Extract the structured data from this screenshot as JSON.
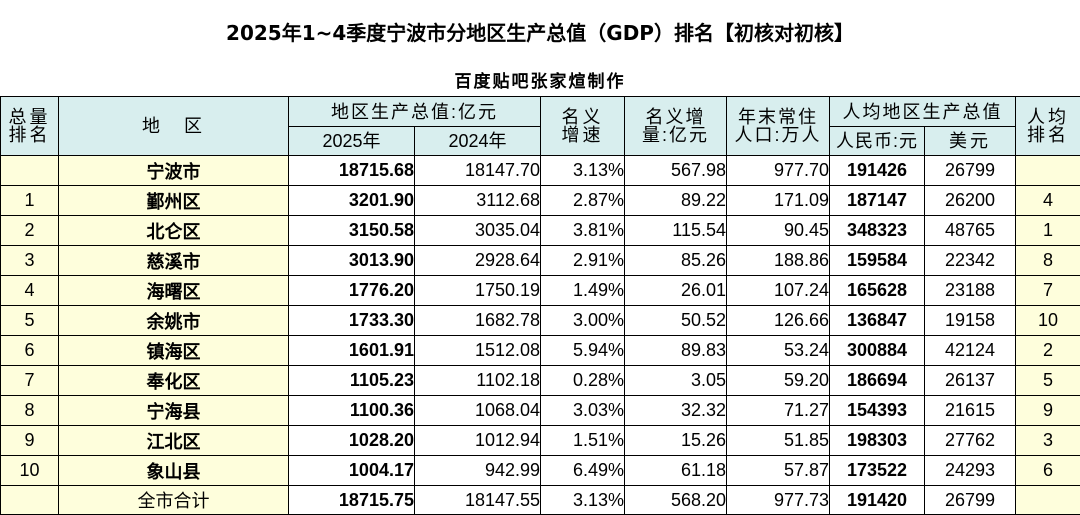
{
  "title": "2025年1~4季度宁波市分地区生产总值（GDP）排名【初核对初核】",
  "subtitle": "百度贴吧张家煊制作",
  "headers": {
    "rank_total": "总量\n排名",
    "region": "地　区",
    "gdp": "地区生产总值:亿元",
    "y2025": "2025年",
    "y2024": "2024年",
    "nominal_growth": "名义\n增速",
    "nominal_increase": "名义增\n量:亿元",
    "population": "年末常住\n人口:万人",
    "per_capita": "人均地区生产总值",
    "rmb": "人民币:元",
    "usd": "美元",
    "per_capita_rank": "人均\n排名"
  },
  "rows": [
    {
      "rank": "",
      "region": "宁波市",
      "gdp2025": "18715.68",
      "gdp2024": "18147.70",
      "growth": "3.13%",
      "increase": "567.98",
      "population": "977.70",
      "rmb": "191426",
      "usd": "26799",
      "pc_rank": ""
    },
    {
      "rank": "1",
      "region": "鄞州区",
      "gdp2025": "3201.90",
      "gdp2024": "3112.68",
      "growth": "2.87%",
      "increase": "89.22",
      "population": "171.09",
      "rmb": "187147",
      "usd": "26200",
      "pc_rank": "4"
    },
    {
      "rank": "2",
      "region": "北仑区",
      "gdp2025": "3150.58",
      "gdp2024": "3035.04",
      "growth": "3.81%",
      "increase": "115.54",
      "population": "90.45",
      "rmb": "348323",
      "usd": "48765",
      "pc_rank": "1"
    },
    {
      "rank": "3",
      "region": "慈溪市",
      "gdp2025": "3013.90",
      "gdp2024": "2928.64",
      "growth": "2.91%",
      "increase": "85.26",
      "population": "188.86",
      "rmb": "159584",
      "usd": "22342",
      "pc_rank": "8"
    },
    {
      "rank": "4",
      "region": "海曙区",
      "gdp2025": "1776.20",
      "gdp2024": "1750.19",
      "growth": "1.49%",
      "increase": "26.01",
      "population": "107.24",
      "rmb": "165628",
      "usd": "23188",
      "pc_rank": "7"
    },
    {
      "rank": "5",
      "region": "余姚市",
      "gdp2025": "1733.30",
      "gdp2024": "1682.78",
      "growth": "3.00%",
      "increase": "50.52",
      "population": "126.66",
      "rmb": "136847",
      "usd": "19158",
      "pc_rank": "10"
    },
    {
      "rank": "6",
      "region": "镇海区",
      "gdp2025": "1601.91",
      "gdp2024": "1512.08",
      "growth": "5.94%",
      "increase": "89.83",
      "population": "53.24",
      "rmb": "300884",
      "usd": "42124",
      "pc_rank": "2"
    },
    {
      "rank": "7",
      "region": "奉化区",
      "gdp2025": "1105.23",
      "gdp2024": "1102.18",
      "growth": "0.28%",
      "increase": "3.05",
      "population": "59.20",
      "rmb": "186694",
      "usd": "26137",
      "pc_rank": "5"
    },
    {
      "rank": "8",
      "region": "宁海县",
      "gdp2025": "1100.36",
      "gdp2024": "1068.04",
      "growth": "3.03%",
      "increase": "32.32",
      "population": "71.27",
      "rmb": "154393",
      "usd": "21615",
      "pc_rank": "9"
    },
    {
      "rank": "9",
      "region": "江北区",
      "gdp2025": "1028.20",
      "gdp2024": "1012.94",
      "growth": "1.51%",
      "increase": "15.26",
      "population": "51.85",
      "rmb": "198303",
      "usd": "27762",
      "pc_rank": "3"
    },
    {
      "rank": "10",
      "region": "象山县",
      "gdp2025": "1004.17",
      "gdp2024": "942.99",
      "growth": "6.49%",
      "increase": "61.18",
      "population": "57.87",
      "rmb": "173522",
      "usd": "24293",
      "pc_rank": "6"
    },
    {
      "rank": "",
      "region": "全市合计",
      "gdp2025": "18715.75",
      "gdp2024": "18147.55",
      "growth": "3.13%",
      "increase": "568.20",
      "population": "977.73",
      "rmb": "191420",
      "usd": "26799",
      "pc_rank": ""
    }
  ]
}
